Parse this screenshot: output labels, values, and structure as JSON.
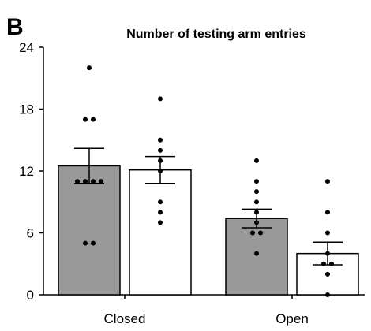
{
  "panel_label": "B",
  "chart_data": {
    "type": "bar",
    "title": "Number of testing arm entries",
    "xlabel": "",
    "ylabel": "",
    "categories": [
      "Closed",
      "Open"
    ],
    "ylim": [
      0,
      24
    ],
    "yticks": [
      0,
      6,
      12,
      18,
      24
    ],
    "grid": false,
    "legend": "none",
    "series": [
      {
        "fill": "#999999",
        "values": [
          12.5,
          7.4
        ],
        "error": [
          [
            10.8,
            14.2
          ],
          [
            6.5,
            8.3
          ]
        ],
        "points": [
          [
            22,
            17,
            17,
            11,
            11,
            11,
            11,
            5,
            5
          ],
          [
            13,
            11,
            10,
            9,
            8,
            7,
            6,
            6,
            4
          ]
        ]
      },
      {
        "fill": "#ffffff",
        "values": [
          12.1,
          4.0
        ],
        "error": [
          [
            10.8,
            13.4
          ],
          [
            2.9,
            5.1
          ]
        ],
        "points": [
          [
            19,
            15,
            14,
            13,
            12,
            9,
            8,
            7
          ],
          [
            11,
            8,
            6,
            4,
            3,
            3,
            2,
            0
          ]
        ]
      }
    ]
  }
}
